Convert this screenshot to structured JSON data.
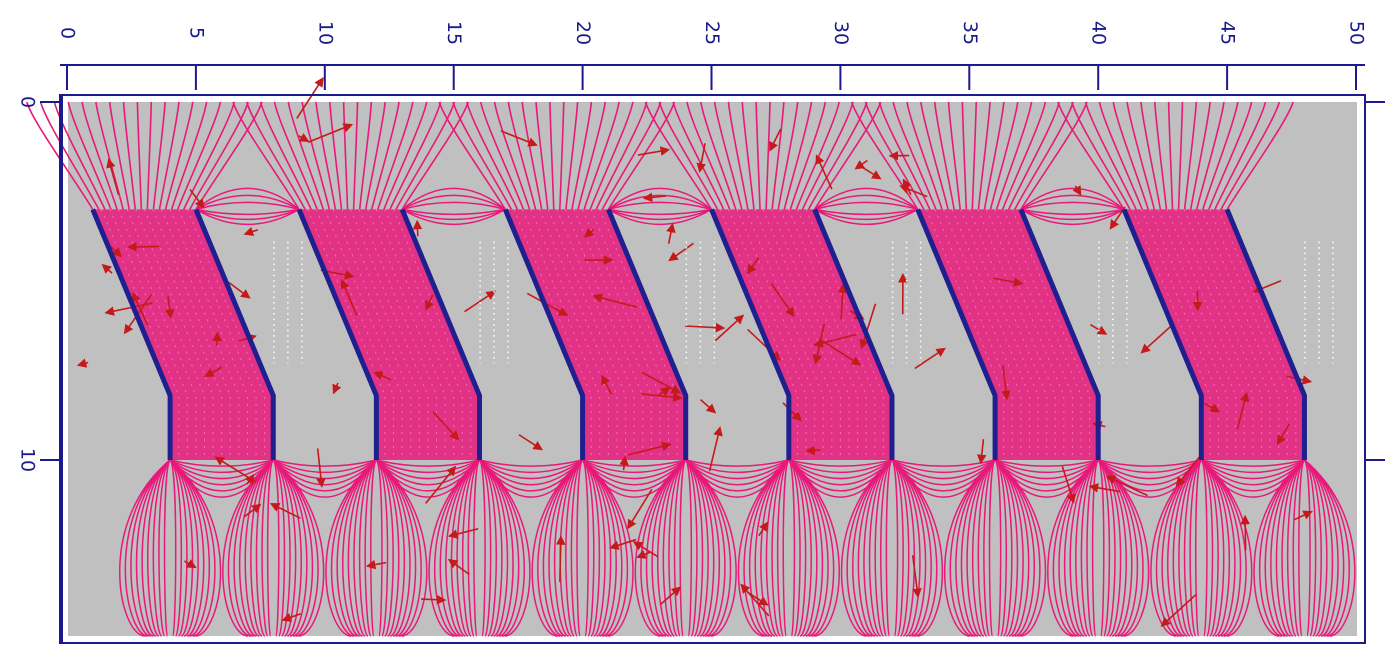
{
  "colors": {
    "background": "#ffffff",
    "field_region": "#c0c0c0",
    "frame": "#1a1a8a",
    "conductor": "#1f1f8f",
    "equipotential_lines": "#e8197a",
    "field_vectors": "#c41a1a",
    "gap_markers": "#ffffff",
    "axis_text": "#1a1a8a"
  },
  "axes": {
    "x_ticks": [
      "0",
      "5",
      "10",
      "15",
      "20",
      "25",
      "30",
      "35",
      "40",
      "45",
      "50"
    ],
    "x_range": [
      0,
      50
    ],
    "y_ticks": [
      "0",
      "10"
    ],
    "y_range": [
      0,
      15
    ]
  },
  "conductors": {
    "count": 12,
    "description_units": "chevron plates, top end tilted left, vertical lower half",
    "pairs": [
      {
        "left_x": 4,
        "right_x": 8
      },
      {
        "left_x": 12,
        "right_x": 16
      },
      {
        "left_x": 20,
        "right_x": 24
      },
      {
        "left_x": 28,
        "right_x": 32
      },
      {
        "left_x": 36,
        "right_x": 40
      },
      {
        "left_x": 44,
        "right_x": 48
      }
    ],
    "top_y": 3,
    "bend_y": 8.2,
    "bottom_y": 10,
    "top_offset_x": -3
  }
}
